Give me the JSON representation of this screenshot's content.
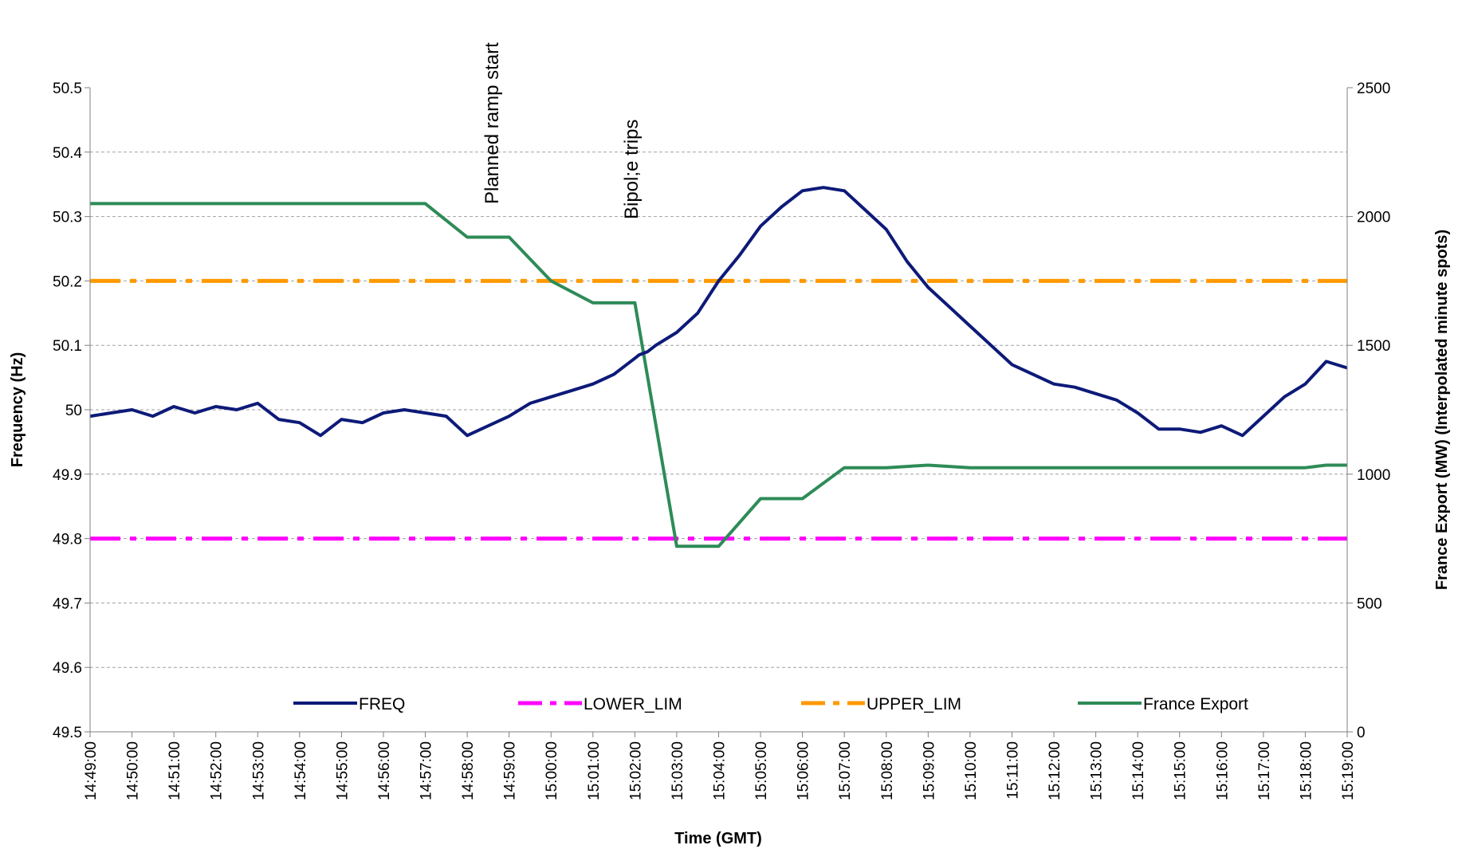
{
  "chart_data": {
    "type": "line",
    "xlabel": "Time (GMT)",
    "ylabel_left": "Frequency (Hz)",
    "ylabel_right": "France Export (MW) (Interpolated minute spots)",
    "x_ticks": [
      "14:49:00",
      "14:50:00",
      "14:51:00",
      "14:52:00",
      "14:53:00",
      "14:54:00",
      "14:55:00",
      "14:56:00",
      "14:57:00",
      "14:58:00",
      "14:59:00",
      "15:00:00",
      "15:01:00",
      "15:02:00",
      "15:03:00",
      "15:04:00",
      "15:05:00",
      "15:06:00",
      "15:07:00",
      "15:08:00",
      "15:09:00",
      "15:10:00",
      "15:11:00",
      "15:12:00",
      "15:13:00",
      "15:14:00",
      "15:15:00",
      "15:16:00",
      "15:17:00",
      "15:18:00",
      "15:19:00"
    ],
    "y_left_ticks": [
      "50.5",
      "50.4",
      "50.3",
      "50.2",
      "50.1",
      "50",
      "49.9",
      "49.8",
      "49.7",
      "49.6",
      "49.5"
    ],
    "y_right_ticks": [
      "2500",
      "2000",
      "1500",
      "1000",
      "500",
      "0"
    ],
    "ylim_left": [
      49.5,
      50.5
    ],
    "ylim_right": [
      0,
      2500
    ],
    "grid": "horizontal dashed",
    "legend_position": "bottom inside plot",
    "annotations": [
      {
        "text": "Planned ramp start",
        "x_minute": 9.5
      },
      {
        "text": "Bipol;e trips",
        "x_minute": 13.0
      }
    ],
    "series": [
      {
        "name": "FREQ",
        "axis": "left",
        "color": "#0d1a78",
        "style": "solid",
        "x_minute": [
          0,
          0.5,
          1,
          1.5,
          2,
          2.5,
          3,
          3.5,
          4,
          4.5,
          5,
          5.5,
          6,
          6.5,
          7,
          7.5,
          8,
          8.5,
          9,
          9.5,
          10,
          10.5,
          11,
          11.5,
          12,
          12.5,
          13,
          13.1,
          13.3,
          13.5,
          14,
          14.5,
          15,
          15.5,
          16,
          16.5,
          17,
          17.5,
          18,
          18.5,
          19,
          19.5,
          20,
          20.5,
          21,
          21.5,
          22,
          22.5,
          23,
          23.5,
          24,
          24.5,
          25,
          25.5,
          26,
          26.5,
          27,
          27.5,
          28,
          28.5,
          29,
          29.5,
          30
        ],
        "values": [
          49.99,
          49.995,
          50.0,
          49.99,
          50.005,
          49.995,
          50.005,
          50.0,
          50.01,
          49.985,
          49.98,
          49.96,
          49.985,
          49.98,
          49.995,
          50.0,
          49.995,
          49.99,
          49.96,
          49.975,
          49.99,
          50.01,
          50.02,
          50.03,
          50.04,
          50.055,
          50.08,
          50.085,
          50.09,
          50.1,
          50.12,
          50.15,
          50.2,
          50.24,
          50.285,
          50.315,
          50.34,
          50.345,
          50.34,
          50.31,
          50.28,
          50.23,
          50.19,
          50.16,
          50.13,
          50.1,
          50.07,
          50.055,
          50.04,
          50.035,
          50.025,
          50.015,
          49.995,
          49.97,
          49.97,
          49.965,
          49.975,
          49.96,
          49.99,
          50.02,
          50.04,
          50.075,
          50.065
        ]
      },
      {
        "name": "LOWER_LIM",
        "axis": "left",
        "color": "#ff00ff",
        "style": "dash-dot",
        "x_minute": [
          0,
          30
        ],
        "values": [
          49.8,
          49.8
        ]
      },
      {
        "name": "UPPER_LIM",
        "axis": "left",
        "color": "#ff9900",
        "style": "dash-dot",
        "x_minute": [
          0,
          30
        ],
        "values": [
          50.2,
          50.2
        ]
      },
      {
        "name": "France Export",
        "axis": "right",
        "color": "#2e8b57",
        "style": "solid",
        "x_minute": [
          0,
          8,
          9,
          10,
          11,
          12,
          13,
          14,
          15,
          16,
          17,
          18,
          19,
          20,
          21,
          22,
          23,
          24,
          25,
          26,
          27,
          28,
          29,
          29.5,
          30
        ],
        "values": [
          2050,
          2050,
          1920,
          1920,
          1750,
          1665,
          1665,
          720,
          720,
          905,
          905,
          1025,
          1025,
          1035,
          1025,
          1025,
          1025,
          1025,
          1025,
          1025,
          1025,
          1025,
          1025,
          1035,
          1035
        ]
      }
    ]
  }
}
